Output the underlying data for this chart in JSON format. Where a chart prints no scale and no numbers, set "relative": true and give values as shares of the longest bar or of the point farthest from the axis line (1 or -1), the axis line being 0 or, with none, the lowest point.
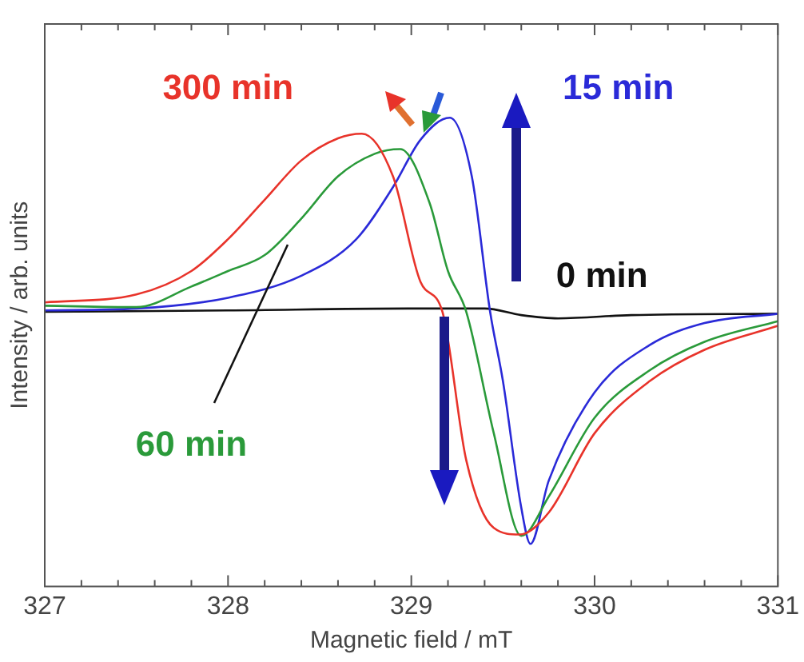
{
  "chart_data": {
    "type": "line",
    "relative": true,
    "xlabel": "Magnetic field / mT",
    "ylabel": "Intensity / arb. units",
    "xlim": [
      327,
      331
    ],
    "xticks": [
      327,
      {
        "value": 327.2,
        "label": null
      },
      {
        "value": 327.4,
        "label": null
      },
      {
        "value": 327.6,
        "label": null
      },
      {
        "value": 327.8,
        "label": null
      },
      328,
      {
        "value": 328.2,
        "label": null
      },
      {
        "value": 328.4,
        "label": null
      },
      {
        "value": 328.6,
        "label": null
      },
      {
        "value": 328.8,
        "label": null
      },
      329,
      {
        "value": 329.2,
        "label": null
      },
      {
        "value": 329.4,
        "label": null
      },
      {
        "value": 329.6,
        "label": null
      },
      {
        "value": 329.8,
        "label": null
      },
      330,
      {
        "value": 330.2,
        "label": null
      },
      {
        "value": 330.4,
        "label": null
      },
      {
        "value": 330.6,
        "label": null
      },
      {
        "value": 330.8,
        "label": null
      },
      331
    ],
    "grid": false,
    "legend": false,
    "marker": "none",
    "line_style": "solid",
    "series": [
      {
        "name": "300 min",
        "color": "#e8332a",
        "x": [
          327,
          327.5,
          327.8,
          328,
          328.2,
          328.4,
          328.6,
          328.73,
          328.9,
          329.05,
          329.17,
          329.3,
          329.45,
          329.59,
          329.75,
          330,
          330.3,
          330.6,
          331
        ],
        "values": [
          0.606,
          0.623,
          0.673,
          0.741,
          0.825,
          0.909,
          0.956,
          0.966,
          0.875,
          0.65,
          0.586,
          0.269,
          0.125,
          0.111,
          0.158,
          0.327,
          0.438,
          0.505,
          0.556
        ]
      },
      {
        "name": "60 min",
        "color": "#2a9a3a",
        "x": [
          327,
          327.5,
          327.8,
          328,
          328.2,
          328.4,
          328.6,
          328.8,
          328.94,
          329.1,
          329.2,
          329.3,
          329.45,
          329.6,
          329.75,
          330,
          330.3,
          330.6,
          331
        ],
        "values": [
          0.599,
          0.596,
          0.64,
          0.673,
          0.707,
          0.785,
          0.875,
          0.923,
          0.933,
          0.818,
          0.673,
          0.586,
          0.327,
          0.108,
          0.192,
          0.36,
          0.461,
          0.522,
          0.566
        ]
      },
      {
        "name": "15 min",
        "color": "#2a2ad8",
        "x": [
          327,
          327.5,
          328,
          328.4,
          328.7,
          328.9,
          329.05,
          329.21,
          329.33,
          329.43,
          329.5,
          329.6,
          329.65,
          329.75,
          330,
          330.3,
          330.6,
          331
        ],
        "values": [
          0.589,
          0.593,
          0.616,
          0.663,
          0.741,
          0.852,
          0.953,
          1,
          0.875,
          0.586,
          0.438,
          0.168,
          0.091,
          0.226,
          0.414,
          0.515,
          0.562,
          0.582
        ]
      },
      {
        "name": "0 min",
        "color": "#111111",
        "x": [
          327,
          328,
          329,
          329.4,
          329.6,
          329.8,
          330.2,
          331
        ],
        "values": [
          0.586,
          0.589,
          0.593,
          0.593,
          0.579,
          0.572,
          0.579,
          0.582
        ]
      }
    ]
  }
}
